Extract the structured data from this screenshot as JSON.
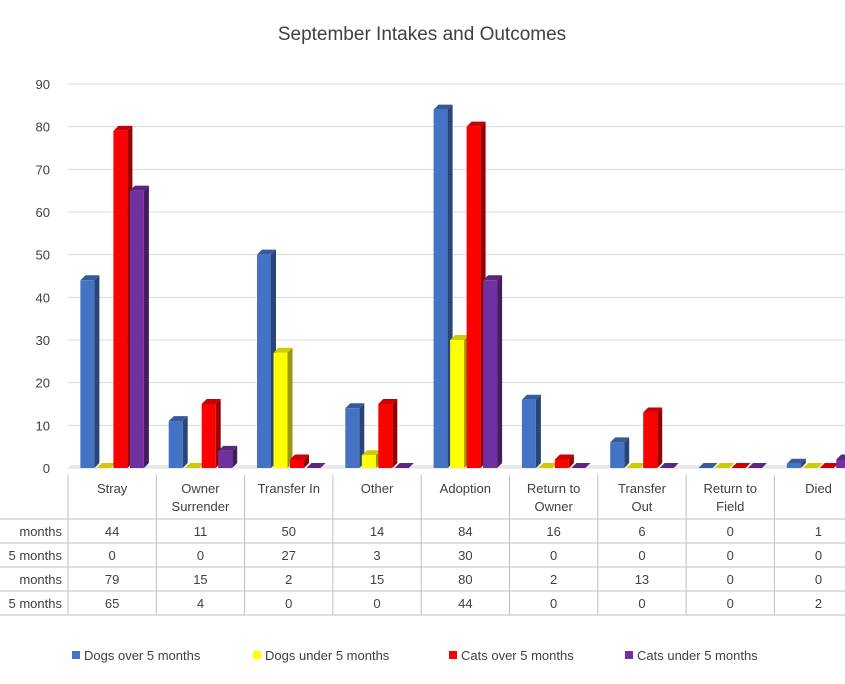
{
  "chart_data": {
    "type": "bar",
    "title": "September Intakes and Outcomes",
    "xlabel": "",
    "ylabel": "",
    "ylim": [
      0,
      90
    ],
    "yticks": [
      0,
      10,
      20,
      30,
      40,
      50,
      60,
      70,
      80,
      90
    ],
    "grid": true,
    "legend_position": "bottom",
    "style": "3d-clustered-column-with-data-table",
    "categories": [
      [
        "Stray"
      ],
      [
        "Owner",
        "Surrender"
      ],
      [
        "Transfer In"
      ],
      [
        "Other"
      ],
      [
        "Adoption"
      ],
      [
        "Return to",
        "Owner"
      ],
      [
        "Transfer",
        "Out"
      ],
      [
        "Return to",
        "Field"
      ],
      [
        "Died"
      ]
    ],
    "series": [
      {
        "name": "Dogs over 5 months",
        "table_label": "months",
        "color": "#4472C4",
        "values": [
          44,
          11,
          50,
          14,
          84,
          16,
          6,
          0,
          1
        ]
      },
      {
        "name": "Dogs under 5 months",
        "table_label": "5 months",
        "color": "#FFFF00",
        "values": [
          0,
          0,
          27,
          3,
          30,
          0,
          0,
          0,
          0
        ]
      },
      {
        "name": "Cats over 5 months",
        "table_label": "months",
        "color": "#FF0000",
        "values": [
          79,
          15,
          2,
          15,
          80,
          2,
          13,
          0,
          0
        ]
      },
      {
        "name": "Cats under 5 months",
        "table_label": "5 months",
        "color": "#7030A0",
        "values": [
          65,
          4,
          0,
          0,
          44,
          0,
          0,
          0,
          2
        ]
      }
    ]
  }
}
